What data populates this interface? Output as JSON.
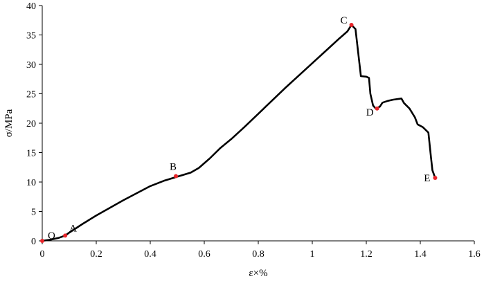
{
  "chart_data": {
    "type": "line",
    "title": "",
    "xlabel": "ε×%",
    "ylabel": "σ/MPa",
    "xlim": [
      0,
      1.6
    ],
    "ylim": [
      0,
      40
    ],
    "grid": false,
    "x_ticks": [
      "0",
      "0.2",
      "0.4",
      "0.6",
      "0.8",
      "1",
      "1.2",
      "1.4",
      "1.6"
    ],
    "y_ticks": [
      "0",
      "5",
      "10",
      "15",
      "20",
      "25",
      "30",
      "35",
      "40"
    ],
    "series": [
      {
        "color": "#000000",
        "points": [
          [
            0,
            0
          ],
          [
            0.03,
            0.2
          ],
          [
            0.06,
            0.5
          ],
          [
            0.085,
            0.9
          ],
          [
            0.1,
            1.4
          ],
          [
            0.15,
            2.9
          ],
          [
            0.2,
            4.3
          ],
          [
            0.25,
            5.6
          ],
          [
            0.3,
            6.9
          ],
          [
            0.35,
            8.1
          ],
          [
            0.4,
            9.3
          ],
          [
            0.45,
            10.2
          ],
          [
            0.5,
            10.9
          ],
          [
            0.55,
            11.6
          ],
          [
            0.58,
            12.4
          ],
          [
            0.62,
            14.0
          ],
          [
            0.66,
            15.8
          ],
          [
            0.7,
            17.3
          ],
          [
            0.75,
            19.4
          ],
          [
            0.8,
            21.6
          ],
          [
            0.85,
            23.8
          ],
          [
            0.9,
            26.0
          ],
          [
            0.95,
            28.1
          ],
          [
            1.0,
            30.2
          ],
          [
            1.05,
            32.3
          ],
          [
            1.1,
            34.4
          ],
          [
            1.13,
            35.6
          ],
          [
            1.145,
            36.7
          ],
          [
            1.16,
            36.0
          ],
          [
            1.17,
            32.0
          ],
          [
            1.18,
            28.0
          ],
          [
            1.2,
            27.9
          ],
          [
            1.21,
            27.7
          ],
          [
            1.215,
            25.0
          ],
          [
            1.225,
            23.0
          ],
          [
            1.235,
            22.5
          ],
          [
            1.25,
            22.8
          ],
          [
            1.26,
            23.5
          ],
          [
            1.28,
            23.8
          ],
          [
            1.3,
            24.0
          ],
          [
            1.33,
            24.2
          ],
          [
            1.34,
            23.4
          ],
          [
            1.36,
            22.5
          ],
          [
            1.38,
            21.0
          ],
          [
            1.39,
            19.8
          ],
          [
            1.41,
            19.3
          ],
          [
            1.43,
            18.4
          ],
          [
            1.44,
            14.0
          ],
          [
            1.445,
            12.0
          ],
          [
            1.455,
            10.7
          ]
        ]
      }
    ],
    "marked_points": [
      {
        "label": "O",
        "x": 0,
        "y": 0
      },
      {
        "label": "A",
        "x": 0.085,
        "y": 0.9
      },
      {
        "label": "B",
        "x": 0.495,
        "y": 11.0
      },
      {
        "label": "C",
        "x": 1.145,
        "y": 36.7
      },
      {
        "label": "D",
        "x": 1.24,
        "y": 22.5
      },
      {
        "label": "E",
        "x": 1.455,
        "y": 10.7
      }
    ],
    "marker_color": "#e8252a"
  }
}
